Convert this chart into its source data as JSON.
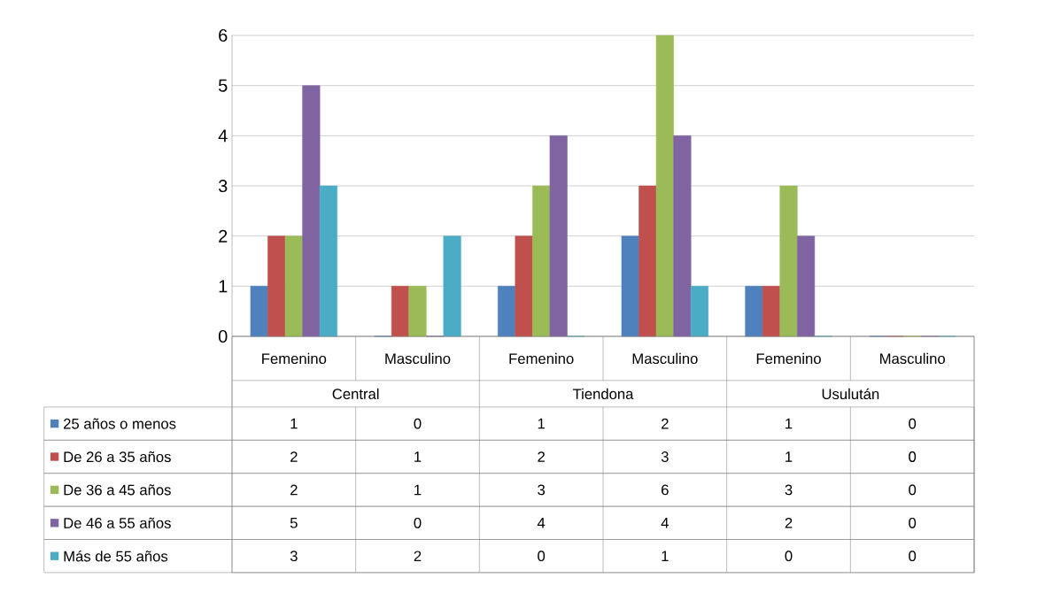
{
  "chart_data": {
    "type": "bar",
    "categories": [
      "Femenino",
      "Masculino",
      "Femenino",
      "Masculino",
      "Femenino",
      "Masculino"
    ],
    "annotations": [
      "Central",
      "Tiendona",
      "Usulután"
    ],
    "series": [
      {
        "name": "25 años o menos",
        "color": "#4f81bd",
        "values": [
          1,
          0,
          1,
          2,
          1,
          0
        ]
      },
      {
        "name": "De 26 a 35 años",
        "color": "#c0504d",
        "values": [
          2,
          1,
          2,
          3,
          1,
          0
        ]
      },
      {
        "name": "De 36 a 45 años",
        "color": "#9bbb59",
        "values": [
          2,
          1,
          3,
          6,
          3,
          0
        ]
      },
      {
        "name": "De 46 a 55 años",
        "color": "#8064a2",
        "values": [
          5,
          0,
          4,
          4,
          2,
          0
        ]
      },
      {
        "name": "Más de 55 años",
        "color": "#4bacc6",
        "values": [
          3,
          2,
          0,
          1,
          0,
          0
        ]
      }
    ],
    "ylim": [
      0,
      6
    ],
    "yticks": [
      0,
      1,
      2,
      3,
      4,
      5,
      6
    ],
    "grid": "y",
    "legend": "bottom left",
    "data_labels": true
  }
}
